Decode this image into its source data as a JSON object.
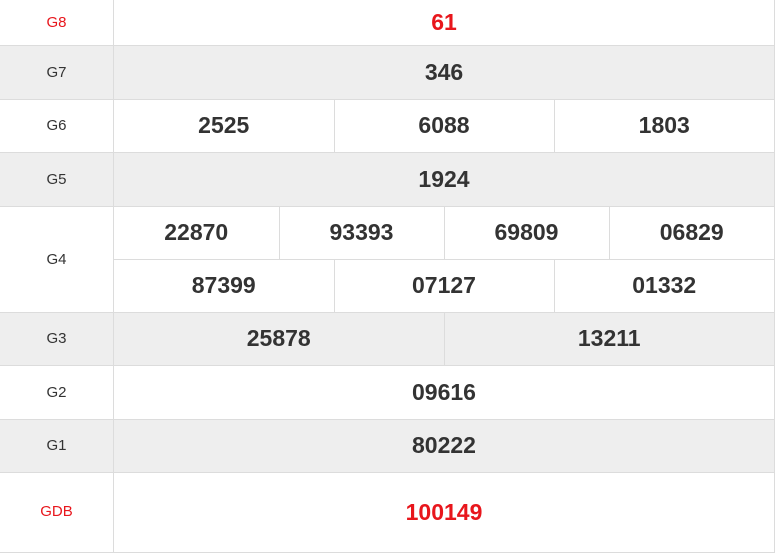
{
  "colors": {
    "accent": "#e8161c",
    "text": "#333333",
    "alt_row": "#eeeeee",
    "border": "#dcdcdc"
  },
  "prizes": [
    {
      "label": "G8",
      "numbers": [
        "61"
      ]
    },
    {
      "label": "G7",
      "numbers": [
        "346"
      ]
    },
    {
      "label": "G6",
      "numbers": [
        "2525",
        "6088",
        "1803"
      ]
    },
    {
      "label": "G5",
      "numbers": [
        "1924"
      ]
    },
    {
      "label": "G4",
      "numbers": [
        "22870",
        "93393",
        "69809",
        "06829",
        "87399",
        "07127",
        "01332"
      ]
    },
    {
      "label": "G3",
      "numbers": [
        "25878",
        "13211"
      ]
    },
    {
      "label": "G2",
      "numbers": [
        "09616"
      ]
    },
    {
      "label": "G1",
      "numbers": [
        "80222"
      ]
    },
    {
      "label": "GDB",
      "numbers": [
        "100149"
      ]
    }
  ]
}
